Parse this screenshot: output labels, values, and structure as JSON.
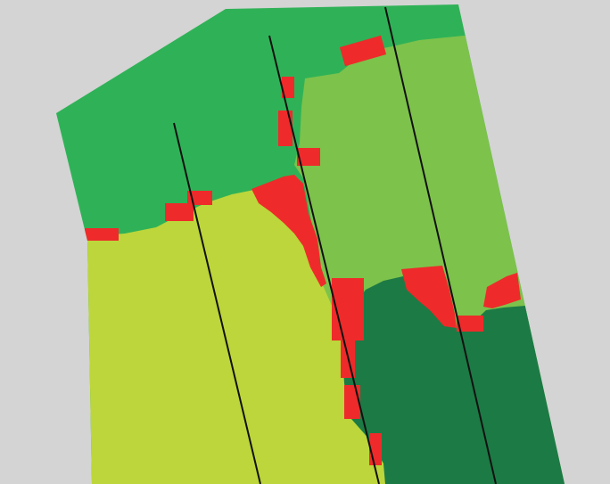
{
  "map": {
    "kind": "field zone map",
    "background_color": "#d3d4d3",
    "zones": [
      {
        "id": "zone-top",
        "color": "#2fb257"
      },
      {
        "id": "zone-mid-right",
        "color": "#7dc24b"
      },
      {
        "id": "zone-lower-left",
        "color": "#bcd63b"
      },
      {
        "id": "zone-lower-right",
        "color": "#1c7a45"
      }
    ],
    "flag_color": "#ee2b2a",
    "path_color": "#111111",
    "path_count": 3
  }
}
